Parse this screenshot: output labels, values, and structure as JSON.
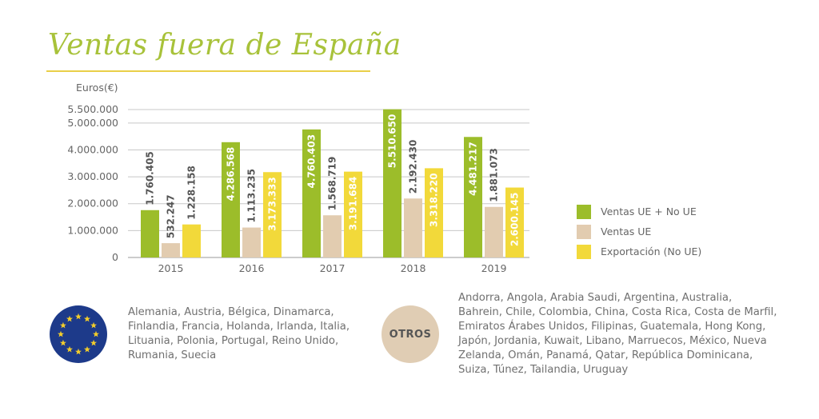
{
  "title": "Ventas fuera de España",
  "chart_data": {
    "type": "bar",
    "ylabel": "Euros(€)",
    "ylim": [
      0,
      5500000
    ],
    "yticks": [
      0,
      1000000,
      2000000,
      3000000,
      4000000,
      5000000,
      5500000
    ],
    "ytick_labels": [
      "0",
      "1.000.000",
      "2.000.000",
      "3.000.000",
      "4.000.000",
      "5.000.000",
      "5.500.000"
    ],
    "grid": true,
    "legend_position": "right",
    "categories": [
      "2015",
      "2016",
      "2017",
      "2018",
      "2019"
    ],
    "series": [
      {
        "name": "Ventas UE + No UE",
        "color": "#9cbd2a",
        "values": [
          1760405,
          4286568,
          4760403,
          5510650,
          4481217
        ],
        "labels": [
          "1.760.405",
          "4.286.568",
          "4.760.403",
          "5.510.650",
          "4.481.217"
        ]
      },
      {
        "name": "Ventas UE",
        "color": "#e2ccb0",
        "values": [
          532247,
          1113235,
          1568719,
          2192430,
          1881073
        ],
        "labels": [
          "532.247",
          "1.113.235",
          "1.568.719",
          "2.192.430",
          "1.881.073"
        ]
      },
      {
        "name": "Exportación (No UE)",
        "color": "#f2d93a",
        "values": [
          1228158,
          3173333,
          3191684,
          3318220,
          2600145
        ],
        "labels": [
          "1.228.158",
          "3.173.333",
          "3.191.684",
          "3.318.220",
          "2.600.145"
        ]
      }
    ]
  },
  "eu_countries": "Alemania, Austria, Bélgica, Dinamarca, Finlandia, Francia, Holanda, Irlanda, Italia, Lituania, Polonia, Portugal, Reino Unido, Rumania, Suecia",
  "otros_label": "OTROS",
  "otros_countries": "Andorra, Angola, Arabia Saudi, Argentina, Australia, Bahrein, Chile, Colombia, China, Costa Rica, Costa de Marfil, Emiratos Árabes Unidos, Filipinas, Guatemala, Hong Kong, Japón, Jordania, Kuwait, Libano, Marruecos, México, Nueva Zelanda, Omán, Panamá, Qatar, República Dominicana, Suiza, Túnez, Tailandia, Uruguay",
  "colors": {
    "title": "#a8c23a",
    "rule": "#e9cf48",
    "eu_blue": "#1d3a8a",
    "eu_star": "#f3cd2b",
    "otros_bg": "#e0cdb4"
  }
}
